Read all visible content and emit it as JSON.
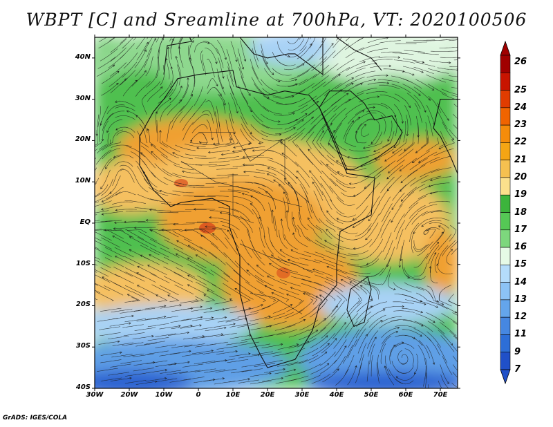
{
  "title": "WBPT [C] and Sreamline at 700hPa, VT: 2020100506",
  "footer": "GrADS: IGES/COLA",
  "map": {
    "lat_labels": [
      "40N",
      "30N",
      "20N",
      "10N",
      "EQ",
      "10S",
      "20S",
      "30S",
      "40S"
    ],
    "lon_labels": [
      "30W",
      "20W",
      "10W",
      "0",
      "10E",
      "20E",
      "30E",
      "40E",
      "50E",
      "60E",
      "70E"
    ],
    "lat_range": [
      -40,
      45
    ],
    "lon_range": [
      -30,
      75
    ]
  },
  "colorbar": {
    "labels": [
      "26",
      "25",
      "24",
      "23",
      "22",
      "21",
      "20",
      "19",
      "18",
      "17",
      "16",
      "15",
      "14",
      "13",
      "12",
      "11",
      "9",
      "7"
    ],
    "colors": [
      "#a00000",
      "#c81400",
      "#e03c00",
      "#f06400",
      "#f58c0a",
      "#f5a514",
      "#f5c050",
      "#fbe08c",
      "#3cb43c",
      "#55c855",
      "#7dd77d",
      "#e6fae6",
      "#b4dcfa",
      "#8cc3f5",
      "#64a5eb",
      "#4687e1",
      "#2d6ed7",
      "#2050c8"
    ]
  },
  "fields": {
    "colors": {
      "hot": "#f0a030",
      "warm": "#f5c060",
      "mild": "#fbe08c",
      "green": "#50c050",
      "lightgreen": "#8ed88e",
      "pale": "#dff5e0",
      "lightblue": "#a8d2f5",
      "blue": "#5f9fe6",
      "deepblue": "#2a62d0",
      "red": "#d84a1c"
    }
  }
}
